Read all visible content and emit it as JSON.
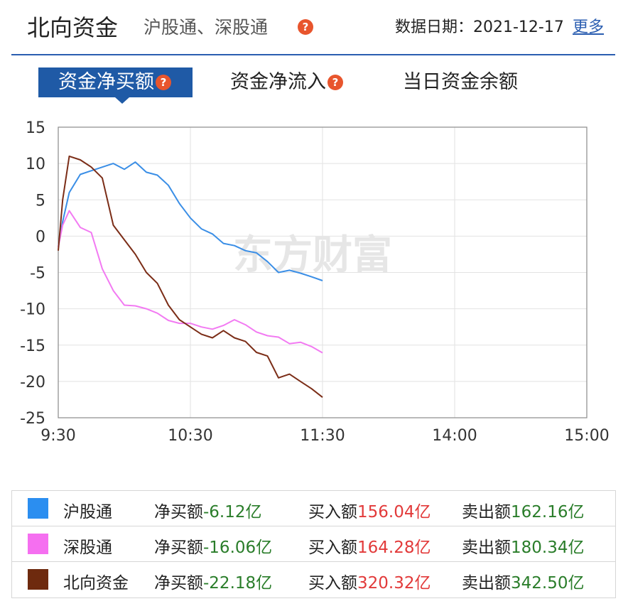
{
  "header": {
    "title": "北向资金",
    "subtitle": "沪股通、深股通",
    "date_label": "数据日期：2021-12-17",
    "more_link": "更多"
  },
  "tabs": [
    {
      "label": "资金净买额",
      "active": true,
      "has_help": true
    },
    {
      "label": "资金净流入",
      "active": false,
      "has_help": true
    },
    {
      "label": "当日资金余额",
      "active": false,
      "has_help": false
    }
  ],
  "watermark": "东方财富",
  "chart_data": {
    "type": "line",
    "x_ticks": [
      "9:30",
      "10:30",
      "11:30",
      "14:00",
      "15:00"
    ],
    "y_ticks": [
      15,
      10,
      5,
      0,
      -5,
      -10,
      -15,
      -20,
      -25
    ],
    "ylim": [
      -25,
      15
    ],
    "grid": true,
    "x_unit_note": "",
    "series": [
      {
        "name": "沪股通",
        "color": "#3a8ee6",
        "x": [
          "9:30",
          "9:32",
          "9:35",
          "9:40",
          "9:45",
          "9:50",
          "9:55",
          "10:00",
          "10:05",
          "10:10",
          "10:15",
          "10:20",
          "10:25",
          "10:30",
          "10:35",
          "10:40",
          "10:45",
          "10:50",
          "10:55",
          "11:00",
          "11:05",
          "11:10",
          "11:15",
          "11:20",
          "11:25",
          "11:30"
        ],
        "values": [
          -1.5,
          2,
          6,
          8.5,
          9,
          9.5,
          10,
          9.2,
          10.2,
          8.8,
          8.4,
          7,
          4.5,
          2.5,
          1,
          0.3,
          -1,
          -1.3,
          -2,
          -2.3,
          -3.5,
          -5,
          -4.7,
          -5.1,
          -5.6,
          -6.12
        ]
      },
      {
        "name": "深股通",
        "color": "#f27af2",
        "x": [
          "9:30",
          "9:32",
          "9:35",
          "9:40",
          "9:45",
          "9:50",
          "9:55",
          "10:00",
          "10:05",
          "10:10",
          "10:15",
          "10:20",
          "10:25",
          "10:30",
          "10:35",
          "10:40",
          "10:45",
          "10:50",
          "10:55",
          "11:00",
          "11:05",
          "11:10",
          "11:15",
          "11:20",
          "11:25",
          "11:30"
        ],
        "values": [
          -1.5,
          1.5,
          3.5,
          1.2,
          0.5,
          -4.5,
          -7.5,
          -9.5,
          -9.6,
          -10,
          -10.6,
          -11.6,
          -12,
          -12,
          -12.5,
          -12.8,
          -12.3,
          -11.5,
          -12.2,
          -13.2,
          -13.7,
          -13.9,
          -14.8,
          -14.6,
          -15.2,
          -16.06
        ]
      },
      {
        "name": "北向资金",
        "color": "#7b2d17",
        "x": [
          "9:30",
          "9:32",
          "9:35",
          "9:40",
          "9:45",
          "9:50",
          "9:55",
          "10:00",
          "10:05",
          "10:10",
          "10:15",
          "10:20",
          "10:25",
          "10:30",
          "10:35",
          "10:40",
          "10:45",
          "10:50",
          "10:55",
          "11:00",
          "11:05",
          "11:10",
          "11:15",
          "11:20",
          "11:25",
          "11:30"
        ],
        "values": [
          -2,
          5,
          11,
          10.5,
          9.5,
          8,
          1.5,
          -0.5,
          -2.5,
          -5,
          -6.5,
          -9.5,
          -11.5,
          -12.5,
          -13.5,
          -14,
          -13,
          -14,
          -14.5,
          -16,
          -16.5,
          -19.5,
          -19,
          -20,
          -21,
          -22.18
        ]
      }
    ]
  },
  "legend_rows": [
    {
      "name": "沪股通",
      "color": "#2b8ef0",
      "net_label": "净买额",
      "net_value": "-6.12亿",
      "buy_label": "买入额",
      "buy_value": "156.04亿",
      "sell_label": "卖出额",
      "sell_value": "162.16亿"
    },
    {
      "name": "深股通",
      "color": "#f56ff0",
      "net_label": "净买额",
      "net_value": "-16.06亿",
      "buy_label": "买入额",
      "buy_value": "164.28亿",
      "sell_label": "卖出额",
      "sell_value": "180.34亿"
    },
    {
      "name": "北向资金",
      "color": "#6e2a0e",
      "net_label": "净买额",
      "net_value": "-22.18亿",
      "buy_label": "买入额",
      "buy_value": "320.32亿",
      "sell_label": "卖出额",
      "sell_value": "342.50亿"
    }
  ]
}
